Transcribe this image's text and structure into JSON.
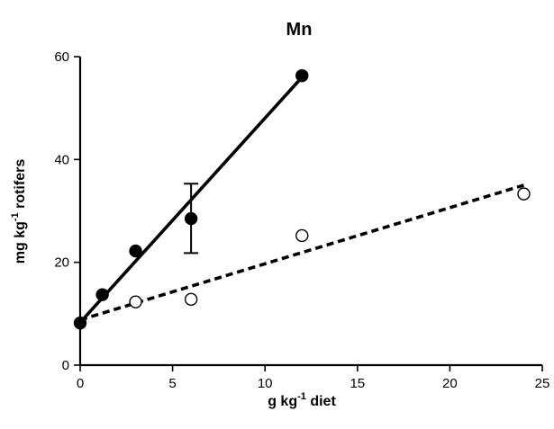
{
  "chart_data": {
    "type": "scatter",
    "title": "Mn",
    "xlabel": "g kg",
    "xlabel_suffix": "diet",
    "xlabel_superscript": "-1",
    "ylabel": "mg kg",
    "ylabel_suffix": "rotifers",
    "ylabel_superscript": "-1",
    "xlim": [
      0,
      25
    ],
    "ylim": [
      0,
      60
    ],
    "x_ticks": [
      0,
      5,
      10,
      15,
      20,
      25
    ],
    "y_ticks": [
      0,
      20,
      40,
      60
    ],
    "grid": false,
    "legend": "none",
    "series": [
      {
        "marker": "filled-circle",
        "line_style": "solid",
        "color": "#000000",
        "points": [
          {
            "x": 0,
            "y": 8.2
          },
          {
            "x": 1.2,
            "y": 13.7
          },
          {
            "x": 3,
            "y": 22.2
          },
          {
            "x": 6,
            "y": 28.5,
            "err_low": 21.8,
            "err_high": 35.3
          },
          {
            "x": 12,
            "y": 56.3
          }
        ],
        "fit": {
          "x1": 0,
          "y1": 8.3,
          "x2": 12,
          "y2": 56.0
        }
      },
      {
        "marker": "open-circle",
        "line_style": "dashed",
        "color": "#000000",
        "points": [
          {
            "x": 3,
            "y": 12.3
          },
          {
            "x": 6,
            "y": 12.8
          },
          {
            "x": 12,
            "y": 25.2
          },
          {
            "x": 24,
            "y": 33.3
          }
        ],
        "fit": {
          "x1": 0,
          "y1": 8.8,
          "x2": 24,
          "y2": 35.0
        }
      }
    ]
  }
}
